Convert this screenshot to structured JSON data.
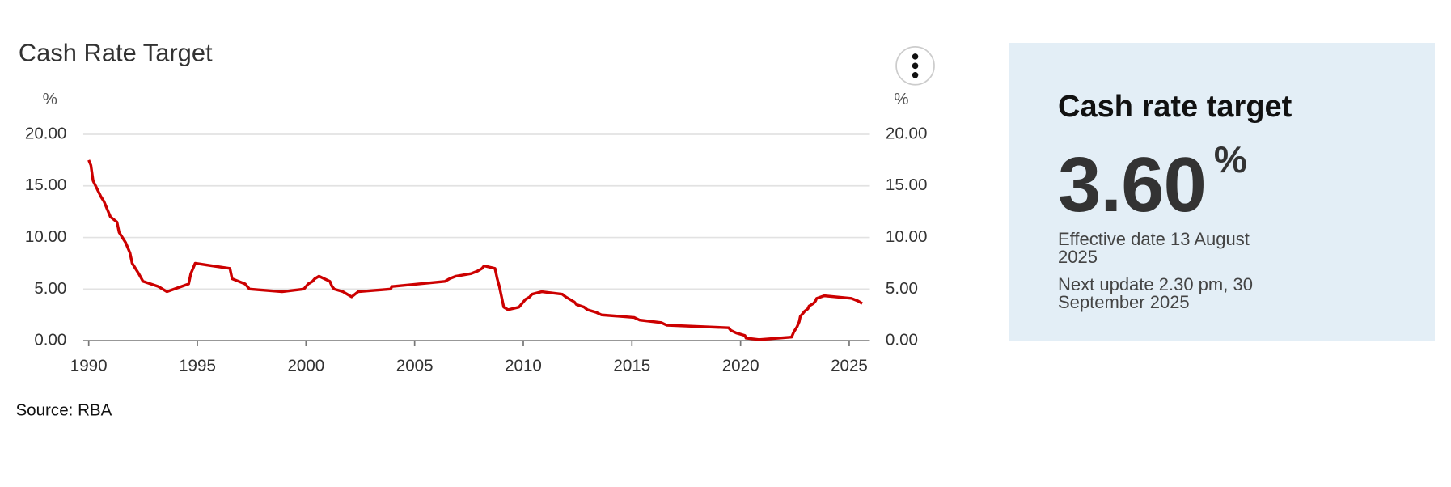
{
  "chart_data": {
    "type": "line",
    "title": "Cash Rate Target",
    "y_label": "%",
    "y2_label": "%",
    "source": "Source: RBA",
    "x": [
      1990.0,
      1990.1,
      1990.2,
      1990.55,
      1990.7,
      1990.9,
      1991.0,
      1991.3,
      1991.4,
      1991.7,
      1991.9,
      1992.0,
      1992.3,
      1992.5,
      1993.2,
      1993.6,
      1994.6,
      1994.7,
      1994.9,
      1996.5,
      1996.6,
      1997.2,
      1997.4,
      1998.9,
      1999.9,
      2000.1,
      2000.3,
      2000.4,
      2000.6,
      2001.1,
      2001.2,
      2001.3,
      2001.7,
      2001.9,
      2002.1,
      2002.4,
      2003.9,
      2003.95,
      2005.2,
      2006.4,
      2006.6,
      2006.9,
      2007.6,
      2007.9,
      2008.1,
      2008.2,
      2008.7,
      2008.8,
      2008.9,
      2009.0,
      2009.1,
      2009.3,
      2009.8,
      2009.9,
      2010.0,
      2010.1,
      2010.3,
      2010.4,
      2010.85,
      2011.8,
      2011.95,
      2012.35,
      2012.45,
      2012.8,
      2012.95,
      2013.35,
      2013.6,
      2015.1,
      2015.35,
      2016.35,
      2016.6,
      2019.45,
      2019.55,
      2019.8,
      2020.2,
      2020.25,
      2020.85,
      2022.35,
      2022.45,
      2022.6,
      2022.7,
      2022.75,
      2022.85,
      2022.95,
      2023.1,
      2023.15,
      2023.35,
      2023.45,
      2023.5,
      2023.85,
      2025.1,
      2025.4,
      2025.6
    ],
    "series": [
      {
        "name": "Cash rate target",
        "color": "#cc0000",
        "values": [
          17.5,
          17.0,
          15.5,
          14.0,
          13.5,
          12.5,
          12.0,
          11.5,
          10.5,
          9.5,
          8.5,
          7.5,
          6.5,
          5.75,
          5.25,
          4.75,
          5.5,
          6.5,
          7.5,
          7.0,
          6.0,
          5.5,
          5.0,
          4.75,
          5.0,
          5.5,
          5.75,
          6.0,
          6.25,
          5.75,
          5.25,
          5.0,
          4.75,
          4.5,
          4.25,
          4.75,
          5.0,
          5.25,
          5.5,
          5.75,
          6.0,
          6.25,
          6.5,
          6.75,
          7.0,
          7.25,
          7.0,
          6.0,
          5.25,
          4.25,
          3.25,
          3.0,
          3.25,
          3.5,
          3.75,
          4.0,
          4.25,
          4.5,
          4.75,
          4.5,
          4.25,
          3.75,
          3.5,
          3.25,
          3.0,
          2.75,
          2.5,
          2.25,
          2.0,
          1.75,
          1.5,
          1.25,
          1.0,
          0.75,
          0.5,
          0.25,
          0.1,
          0.35,
          0.85,
          1.35,
          1.85,
          2.35,
          2.6,
          2.85,
          3.1,
          3.35,
          3.6,
          3.85,
          4.1,
          4.35,
          4.1,
          3.85,
          3.6
        ]
      }
    ],
    "xlim": [
      1989.75,
      2025.95
    ],
    "xticks": [
      1990,
      1995,
      2000,
      2005,
      2010,
      2015,
      2020,
      2025
    ],
    "ylim": [
      0,
      20
    ],
    "yticks": [
      {
        "value": 0,
        "label": "0.00"
      },
      {
        "value": 5,
        "label": "5.00"
      },
      {
        "value": 10,
        "label": "10.00"
      },
      {
        "value": 15,
        "label": "15.00"
      },
      {
        "value": 20,
        "label": "20.00"
      }
    ],
    "y2lim": [
      0,
      20
    ],
    "y2ticks": [
      {
        "value": 0,
        "label": "0.00"
      },
      {
        "value": 5,
        "label": "5.00"
      },
      {
        "value": 10,
        "label": "10.00"
      },
      {
        "value": 15,
        "label": "15.00"
      },
      {
        "value": 20,
        "label": "20.00"
      }
    ],
    "grid": true
  },
  "panel": {
    "title": "Cash rate target",
    "rate": {
      "value": 3.6,
      "label": "3.60"
    },
    "unit": "%",
    "effective": "Effective date 13 August 2025",
    "next_update": "Next update 2.30 pm, 30 September 2025"
  }
}
